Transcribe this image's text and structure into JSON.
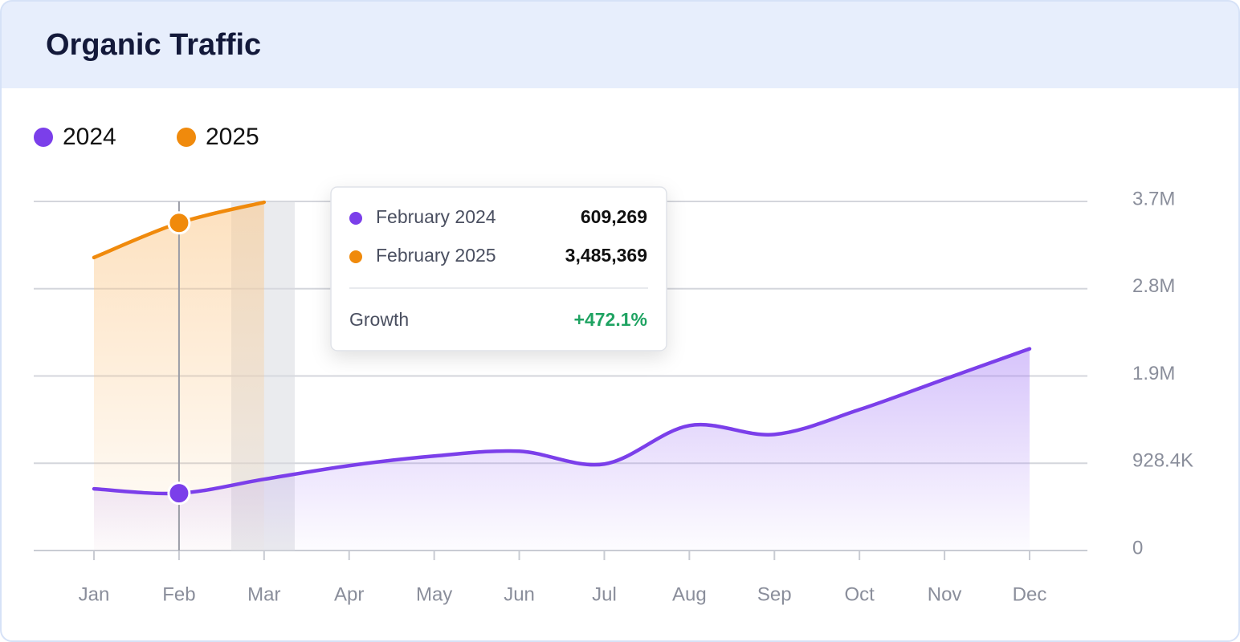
{
  "chart_data": {
    "type": "line",
    "title": "Organic Traffic",
    "categories": [
      "Jan",
      "Feb",
      "Mar",
      "Apr",
      "May",
      "Jun",
      "Jul",
      "Aug",
      "Sep",
      "Oct",
      "Nov",
      "Dec"
    ],
    "series": [
      {
        "name": "2024",
        "color": "#7b3fea",
        "values": [
          656000,
          609269,
          758000,
          903000,
          1005000,
          1056000,
          920000,
          1329000,
          1235000,
          1499000,
          1823000,
          2146000
        ]
      },
      {
        "name": "2025",
        "color": "#f08a0c",
        "values": [
          3117000,
          3485369,
          3705000,
          null,
          null,
          null,
          null,
          null,
          null,
          null,
          null,
          null
        ]
      }
    ],
    "ylim": [
      0,
      3713600
    ],
    "yticks": [
      0,
      {
        "value": 928400,
        "label": "928.4K"
      },
      {
        "value": 1856800,
        "label": "1.9M"
      },
      {
        "value": 2785200,
        "label": "2.8M"
      },
      {
        "value": 3713600,
        "label": "3.7M"
      }
    ],
    "grid": true,
    "legend": "top-left",
    "tooltip": {
      "rows": [
        {
          "name": "February 2024",
          "value": "609,269"
        },
        {
          "name": "February 2025",
          "value": "3,485,369"
        }
      ],
      "growth_label": "Growth",
      "growth": "+472.1%"
    }
  }
}
